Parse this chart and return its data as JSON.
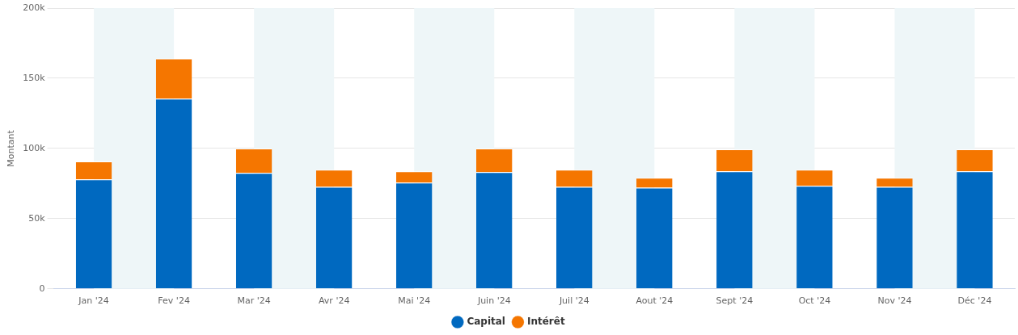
{
  "chart_data": {
    "type": "bar",
    "stacked": true,
    "ylabel": "Montant",
    "categories": [
      "Jan '24",
      "Fev '24",
      "Mar '24",
      "Avr '24",
      "Mai '24",
      "Juin '24",
      "Juil '24",
      "Aout '24",
      "Sept '24",
      "Oct '24",
      "Nov '24",
      "Déc '24"
    ],
    "series": [
      {
        "name": "Capital",
        "color": "#0069c0",
        "values": [
          78,
          135.5,
          82.6,
          72.7,
          75.6,
          83.1,
          72.7,
          72.1,
          83.7,
          73.3,
          72.7,
          83.7
        ]
      },
      {
        "name": "Intérêt",
        "color": "#f57600",
        "values": [
          12.8,
          28.5,
          17.4,
          12.2,
          8.1,
          16.9,
          12.2,
          7,
          15.7,
          11.6,
          6.4,
          15.7
        ]
      }
    ],
    "ylim": [
      0,
      200
    ],
    "yticks": [
      {
        "value": 0,
        "label": "0"
      },
      {
        "value": 50,
        "label": "50k"
      },
      {
        "value": 100,
        "label": "100k"
      },
      {
        "value": 150,
        "label": "150k"
      },
      {
        "value": 200,
        "label": "200k"
      }
    ],
    "grid": "y",
    "legend": "bottom",
    "marker": "circle",
    "bands": [
      {
        "axis": "x",
        "from": "Jan '24",
        "to": "Fev '24",
        "color": "#eef6f8"
      },
      {
        "axis": "x",
        "from": "Mar '24",
        "to": "Avr '24",
        "color": "#eef6f8"
      },
      {
        "axis": "x",
        "from": "Mai '24",
        "to": "Juin '24",
        "color": "#eef6f8"
      },
      {
        "axis": "x",
        "from": "Juil '24",
        "to": "Aout '24",
        "color": "#eef6f8"
      },
      {
        "axis": "x",
        "from": "Sept '24",
        "to": "Oct '24",
        "color": "#eef6f8"
      },
      {
        "axis": "x",
        "from": "Nov '24",
        "to": "Déc '24",
        "color": "#eef6f8"
      }
    ]
  }
}
